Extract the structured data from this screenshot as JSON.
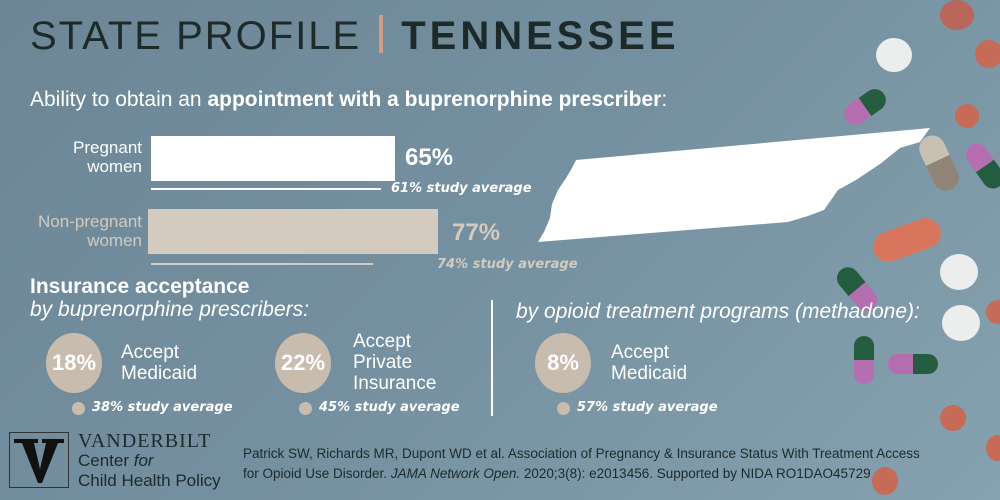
{
  "header": {
    "prefix": "STATE PROFILE",
    "state": "TENNESSEE"
  },
  "subtitle": {
    "before": "Ability to obtain an ",
    "bold": "appointment with a buprenorphine prescriber",
    "after": ":"
  },
  "appointment": [
    {
      "label_line1": "Pregnant",
      "label_line2": "women",
      "value": "65%",
      "percent": 65,
      "average": "61% study average",
      "average_value": 61,
      "color": "#ffffff"
    },
    {
      "label_line1": "Non-pregnant",
      "label_line2": "women",
      "value": "77%",
      "percent": 77,
      "average": "74% study average",
      "average_value": 74,
      "color": "#d3cbbf"
    }
  ],
  "insurance": {
    "heading": "Insurance acceptance",
    "by_bup": "by buprenorphine prescribers:",
    "by_otp": "by opioid treatment programs (methadone):",
    "items": [
      {
        "value": "18%",
        "line1": "Accept",
        "line2": "Medicaid",
        "line3": "",
        "average": "38% study average"
      },
      {
        "value": "22%",
        "line1": "Accept",
        "line2": "Private",
        "line3": "Insurance",
        "average": "45% study average"
      },
      {
        "value": "8%",
        "line1": "Accept",
        "line2": "Medicaid",
        "line3": "",
        "average": "57% study average"
      }
    ]
  },
  "footer": {
    "logo_name": "VANDERBILT",
    "logo_line2": "Center ",
    "logo_line2_italic": "for",
    "logo_line3": "Child Health Policy",
    "cite_line1": "Patrick SW, Richards MR, Dupont WD et al. Association of Pregnancy & Insurance Status With Treatment Access",
    "cite_line2a": "for Opioid Use Disorder. ",
    "cite_journal": "JAMA Network Open.",
    "cite_line2b": " 2020;3(8): e2013456. Supported by  NIDA RO1DAO45729"
  }
}
